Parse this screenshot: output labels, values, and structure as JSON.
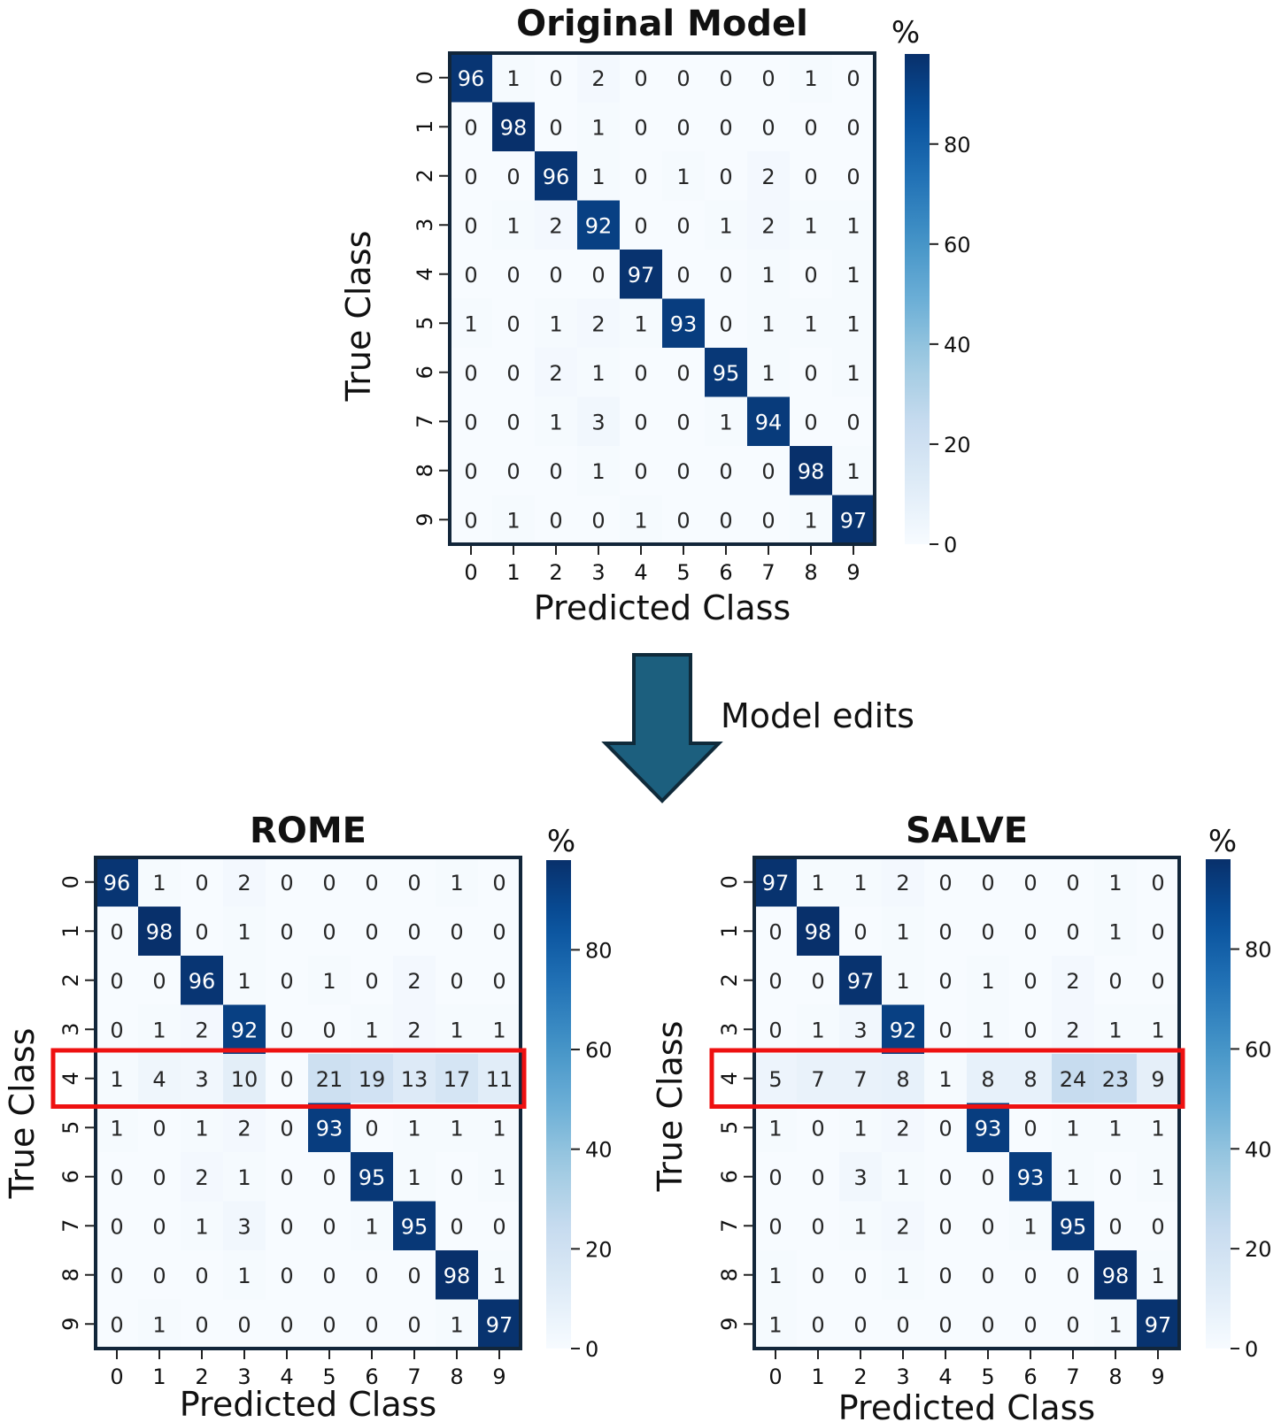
{
  "annotation": {
    "arrow_label": "Model edits"
  },
  "colors": {
    "cmap_low": "#f7fbff",
    "cmap_high": "#08306b",
    "frame": "#12263a",
    "arrow_fill": "#1c5f7e",
    "arrow_stroke": "#0f2a3a",
    "highlight": "#ee1111"
  },
  "chart_data": [
    {
      "type": "heatmap",
      "title": "Original Model",
      "xlabel": "Predicted Class",
      "ylabel": "True Class",
      "x_categories": [
        "0",
        "1",
        "2",
        "3",
        "4",
        "5",
        "6",
        "7",
        "8",
        "9"
      ],
      "y_categories": [
        "0",
        "1",
        "2",
        "3",
        "4",
        "5",
        "6",
        "7",
        "8",
        "9"
      ],
      "colorbar": {
        "label": "%",
        "ticks": [
          0,
          20,
          40,
          60,
          80
        ],
        "range": [
          0,
          98
        ]
      },
      "highlight_row": null,
      "values": [
        [
          96,
          1,
          0,
          2,
          0,
          0,
          0,
          0,
          1,
          0
        ],
        [
          0,
          98,
          0,
          1,
          0,
          0,
          0,
          0,
          0,
          0
        ],
        [
          0,
          0,
          96,
          1,
          0,
          1,
          0,
          2,
          0,
          0
        ],
        [
          0,
          1,
          2,
          92,
          0,
          0,
          1,
          2,
          1,
          1
        ],
        [
          0,
          0,
          0,
          0,
          97,
          0,
          0,
          1,
          0,
          1
        ],
        [
          1,
          0,
          1,
          2,
          1,
          93,
          0,
          1,
          1,
          1
        ],
        [
          0,
          0,
          2,
          1,
          0,
          0,
          95,
          1,
          0,
          1
        ],
        [
          0,
          0,
          1,
          3,
          0,
          0,
          1,
          94,
          0,
          0
        ],
        [
          0,
          0,
          0,
          1,
          0,
          0,
          0,
          0,
          98,
          1
        ],
        [
          0,
          1,
          0,
          0,
          1,
          0,
          0,
          0,
          1,
          97
        ]
      ]
    },
    {
      "type": "heatmap",
      "title": "ROME",
      "xlabel": "Predicted Class",
      "ylabel": "True Class",
      "x_categories": [
        "0",
        "1",
        "2",
        "3",
        "4",
        "5",
        "6",
        "7",
        "8",
        "9"
      ],
      "y_categories": [
        "0",
        "1",
        "2",
        "3",
        "4",
        "5",
        "6",
        "7",
        "8",
        "9"
      ],
      "colorbar": {
        "label": "%",
        "ticks": [
          0,
          20,
          40,
          60,
          80
        ],
        "range": [
          0,
          98
        ]
      },
      "highlight_row": 4,
      "values": [
        [
          96,
          1,
          0,
          2,
          0,
          0,
          0,
          0,
          1,
          0
        ],
        [
          0,
          98,
          0,
          1,
          0,
          0,
          0,
          0,
          0,
          0
        ],
        [
          0,
          0,
          96,
          1,
          0,
          1,
          0,
          2,
          0,
          0
        ],
        [
          0,
          1,
          2,
          92,
          0,
          0,
          1,
          2,
          1,
          1
        ],
        [
          1,
          4,
          3,
          10,
          0,
          21,
          19,
          13,
          17,
          11
        ],
        [
          1,
          0,
          1,
          2,
          0,
          93,
          0,
          1,
          1,
          1
        ],
        [
          0,
          0,
          2,
          1,
          0,
          0,
          95,
          1,
          0,
          1
        ],
        [
          0,
          0,
          1,
          3,
          0,
          0,
          1,
          95,
          0,
          0
        ],
        [
          0,
          0,
          0,
          1,
          0,
          0,
          0,
          0,
          98,
          1
        ],
        [
          0,
          1,
          0,
          0,
          0,
          0,
          0,
          0,
          1,
          97
        ]
      ]
    },
    {
      "type": "heatmap",
      "title": "SALVE",
      "xlabel": "Predicted Class",
      "ylabel": "True Class",
      "x_categories": [
        "0",
        "1",
        "2",
        "3",
        "4",
        "5",
        "6",
        "7",
        "8",
        "9"
      ],
      "y_categories": [
        "0",
        "1",
        "2",
        "3",
        "4",
        "5",
        "6",
        "7",
        "8",
        "9"
      ],
      "colorbar": {
        "label": "%",
        "ticks": [
          0,
          20,
          40,
          60,
          80
        ],
        "range": [
          0,
          98
        ]
      },
      "highlight_row": 4,
      "values": [
        [
          97,
          1,
          1,
          2,
          0,
          0,
          0,
          0,
          1,
          0
        ],
        [
          0,
          98,
          0,
          1,
          0,
          0,
          0,
          0,
          1,
          0
        ],
        [
          0,
          0,
          97,
          1,
          0,
          1,
          0,
          2,
          0,
          0
        ],
        [
          0,
          1,
          3,
          92,
          0,
          1,
          0,
          2,
          1,
          1
        ],
        [
          5,
          7,
          7,
          8,
          1,
          8,
          8,
          24,
          23,
          9
        ],
        [
          1,
          0,
          1,
          2,
          0,
          93,
          0,
          1,
          1,
          1
        ],
        [
          0,
          0,
          3,
          1,
          0,
          0,
          93,
          1,
          0,
          1
        ],
        [
          0,
          0,
          1,
          2,
          0,
          0,
          1,
          95,
          0,
          0
        ],
        [
          1,
          0,
          0,
          1,
          0,
          0,
          0,
          0,
          98,
          1
        ],
        [
          1,
          0,
          0,
          0,
          0,
          0,
          0,
          0,
          1,
          97
        ]
      ]
    }
  ]
}
